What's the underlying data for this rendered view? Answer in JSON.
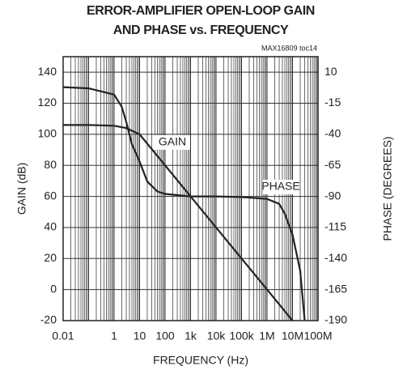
{
  "chart_data": {
    "type": "line",
    "title": [
      "ERROR-AMPLIFIER OPEN-LOOP GAIN",
      "AND PHASE vs. FREQUENCY"
    ],
    "note": "MAX16809 toc14",
    "xlabel": "FREQUENCY (Hz)",
    "ylabel": "GAIN (dB)",
    "y2label": "PHASE (DEGREES)",
    "xscale": "log",
    "xlim": [
      0.01,
      100000000
    ],
    "xticks": [
      0.01,
      1,
      10,
      100,
      {
        "value": 1000,
        "label": "1k"
      },
      {
        "value": 10000,
        "label": "10k"
      },
      {
        "value": 100000,
        "label": "100k"
      },
      {
        "value": 1000000,
        "label": "1M"
      },
      {
        "value": 10000000,
        "label": "10M"
      },
      {
        "value": 100000000,
        "label": "100M"
      }
    ],
    "ylim": [
      -20,
      150
    ],
    "yticks": [
      -20,
      0,
      20,
      40,
      60,
      80,
      100,
      120,
      140
    ],
    "y2lim": [
      -190,
      22.5
    ],
    "y2ticks": [
      -190,
      -165,
      -140,
      -115,
      -90,
      -65,
      -40,
      -15,
      10
    ],
    "grid": true,
    "minor_grid": true,
    "series": [
      {
        "name": "GAIN",
        "color": "#222222",
        "x": [
          0.01,
          0.1,
          1,
          3,
          10,
          100,
          1000,
          10000,
          100000,
          1000000,
          10000000
        ],
        "values": [
          106,
          106,
          105.5,
          104,
          100,
          80,
          60,
          40,
          20,
          0,
          -20
        ]
      },
      {
        "name": "PHASE",
        "color": "#222222",
        "axis": "y2",
        "x": [
          0.01,
          0.1,
          1,
          2,
          3,
          5,
          10,
          20,
          50,
          100,
          1000,
          10000,
          100000,
          1000000,
          3000000,
          5000000,
          10000000,
          20000000,
          30000000
        ],
        "values": [
          -2,
          -3,
          -8,
          -18,
          -30,
          -48,
          -62,
          -78,
          -86,
          -88,
          -90,
          -90,
          -90.5,
          -92,
          -96,
          -104,
          -121,
          -150,
          -190
        ]
      }
    ]
  }
}
